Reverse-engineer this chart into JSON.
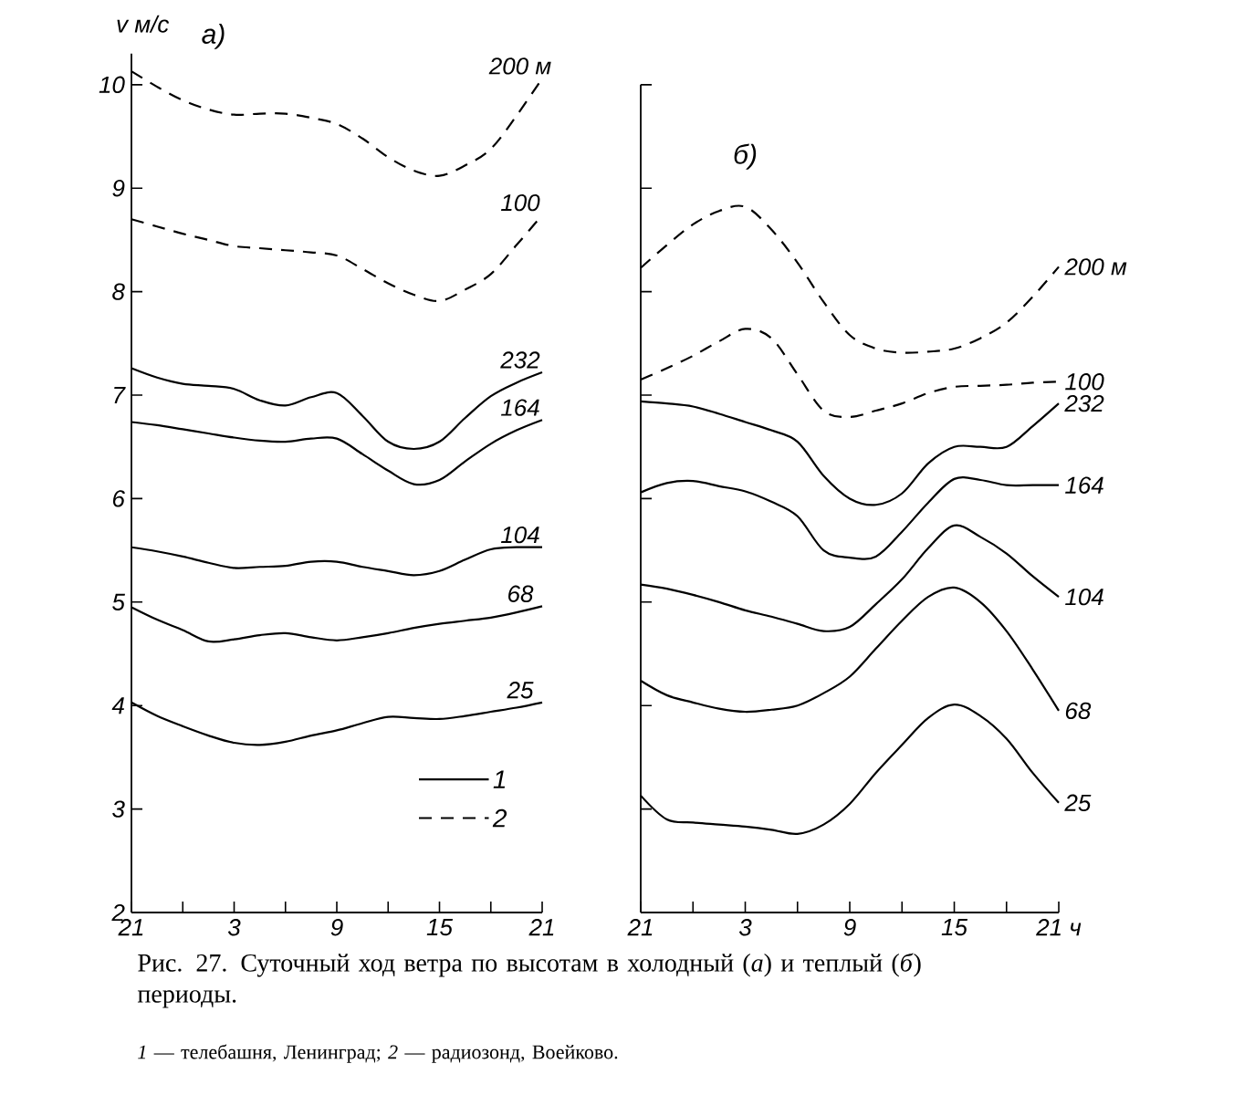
{
  "chart_data": [
    {
      "type": "line",
      "title": "а)",
      "ylabel": "v м/с",
      "categories": [
        "21",
        null,
        null,
        null,
        "3",
        null,
        null,
        null,
        "9",
        null,
        null,
        null,
        "15",
        null,
        null,
        null,
        "21"
      ],
      "ylim": [
        2,
        10.3
      ],
      "yticks": [
        2,
        3,
        4,
        5,
        6,
        7,
        8,
        9,
        10
      ],
      "annotations": [
        "1",
        "2",
        "Рис. 27. Суточный ход ветра по высотам в холодный (*а*) и теплый (*б*) периоды.",
        "*1* — телебашня, Ленинград; *2* — радиозонд, Воейково."
      ],
      "series": [
        {
          "name": "200 м",
          "color": "#000000",
          "line_style": "dashed",
          "values": [
            10.13,
            9.98,
            9.85,
            9.76,
            9.71,
            9.72,
            9.72,
            9.68,
            9.62,
            9.48,
            9.3,
            9.17,
            9.12,
            9.22,
            9.38,
            9.7,
            10.06
          ]
        },
        {
          "name": "100",
          "color": "#000000",
          "line_style": "dashed",
          "values": [
            8.7,
            8.63,
            8.56,
            8.5,
            8.44,
            8.42,
            8.4,
            8.38,
            8.35,
            8.22,
            8.08,
            7.97,
            7.91,
            8.02,
            8.17,
            8.45,
            8.74
          ]
        },
        {
          "name": "232",
          "color": "#000000",
          "line_style": "solid",
          "values": [
            7.26,
            7.17,
            7.11,
            7.09,
            7.06,
            6.95,
            6.9,
            6.98,
            7.02,
            6.8,
            6.55,
            6.48,
            6.55,
            6.78,
            6.99,
            7.12,
            7.22
          ]
        },
        {
          "name": "164",
          "color": "#000000",
          "line_style": "solid",
          "values": [
            6.74,
            6.71,
            6.67,
            6.63,
            6.59,
            6.56,
            6.55,
            6.58,
            6.58,
            6.43,
            6.27,
            6.14,
            6.18,
            6.36,
            6.53,
            6.66,
            6.76
          ]
        },
        {
          "name": "104",
          "color": "#000000",
          "line_style": "solid",
          "values": [
            5.53,
            5.49,
            5.44,
            5.38,
            5.33,
            5.34,
            5.35,
            5.39,
            5.39,
            5.34,
            5.3,
            5.26,
            5.3,
            5.41,
            5.51,
            5.53,
            5.53
          ]
        },
        {
          "name": "68",
          "color": "#000000",
          "line_style": "solid",
          "values": [
            4.95,
            4.83,
            4.73,
            4.62,
            4.64,
            4.68,
            4.7,
            4.66,
            4.63,
            4.66,
            4.7,
            4.75,
            4.79,
            4.82,
            4.85,
            4.9,
            4.96
          ]
        },
        {
          "name": "25",
          "color": "#000000",
          "line_style": "solid",
          "values": [
            4.03,
            3.9,
            3.8,
            3.71,
            3.64,
            3.62,
            3.65,
            3.71,
            3.76,
            3.83,
            3.89,
            3.88,
            3.87,
            3.9,
            3.94,
            3.98,
            4.03
          ]
        }
      ]
    },
    {
      "type": "line",
      "title": "б)",
      "tick_labels": "x",
      "categories": [
        "21",
        null,
        null,
        null,
        "3",
        null,
        null,
        null,
        "9",
        null,
        null,
        null,
        "15",
        null,
        null,
        null,
        "21 ч"
      ],
      "ylim": [
        2,
        10
      ],
      "yticks": [
        2,
        3,
        4,
        5,
        6,
        7,
        8,
        9,
        10
      ],
      "series": [
        {
          "name": "200 м",
          "color": "#000000",
          "line_style": "dashed",
          "values": [
            8.23,
            8.45,
            8.65,
            8.78,
            8.82,
            8.6,
            8.28,
            7.9,
            7.58,
            7.45,
            7.41,
            7.42,
            7.45,
            7.55,
            7.7,
            7.95,
            8.24
          ]
        },
        {
          "name": "100",
          "color": "#000000",
          "line_style": "dashed",
          "values": [
            7.15,
            7.26,
            7.38,
            7.52,
            7.64,
            7.55,
            7.2,
            6.85,
            6.79,
            6.85,
            6.92,
            7.02,
            7.08,
            7.09,
            7.1,
            7.12,
            7.13
          ]
        },
        {
          "name": "232",
          "color": "#000000",
          "line_style": "solid",
          "values": [
            6.94,
            6.92,
            6.89,
            6.82,
            6.74,
            6.66,
            6.55,
            6.22,
            6.0,
            5.94,
            6.05,
            6.34,
            6.5,
            6.5,
            6.5,
            6.7,
            6.92
          ]
        },
        {
          "name": "164",
          "color": "#000000",
          "line_style": "solid",
          "values": [
            6.06,
            6.15,
            6.17,
            6.12,
            6.07,
            5.97,
            5.83,
            5.5,
            5.43,
            5.44,
            5.68,
            5.96,
            6.19,
            6.18,
            6.13,
            6.13,
            6.13
          ]
        },
        {
          "name": "104",
          "color": "#000000",
          "line_style": "solid",
          "values": [
            5.17,
            5.13,
            5.07,
            5.0,
            4.92,
            4.86,
            4.79,
            4.72,
            4.76,
            4.98,
            5.22,
            5.52,
            5.74,
            5.63,
            5.47,
            5.25,
            5.05
          ]
        },
        {
          "name": "68",
          "color": "#000000",
          "line_style": "solid",
          "values": [
            4.24,
            4.1,
            4.03,
            3.97,
            3.94,
            3.96,
            4.0,
            4.12,
            4.28,
            4.55,
            4.82,
            5.05,
            5.14,
            5.0,
            4.72,
            4.35,
            3.95
          ]
        },
        {
          "name": "25",
          "color": "#000000",
          "line_style": "solid",
          "values": [
            3.13,
            2.9,
            2.87,
            2.85,
            2.83,
            2.8,
            2.76,
            2.85,
            3.05,
            3.35,
            3.62,
            3.88,
            4.01,
            3.9,
            3.68,
            3.35,
            3.06
          ]
        }
      ]
    }
  ]
}
